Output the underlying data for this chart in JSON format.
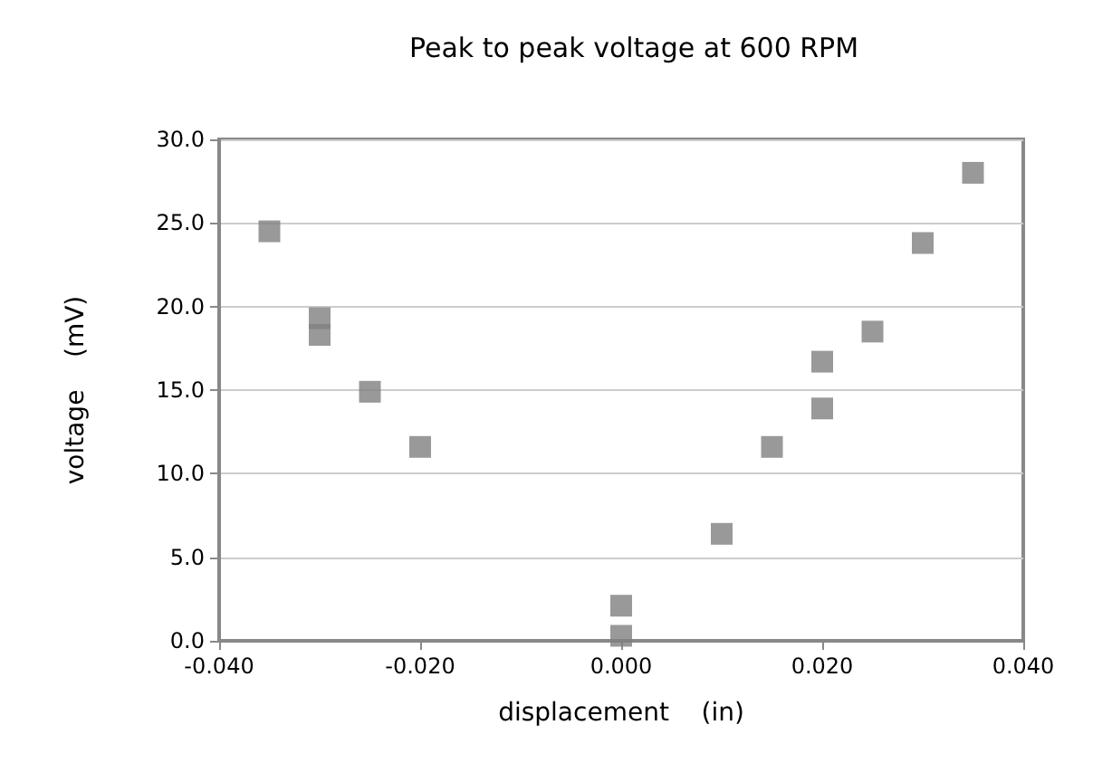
{
  "chart_data": {
    "type": "scatter",
    "title": "Peak to peak voltage at 600 RPM",
    "xlabel": "displacement    (in)",
    "ylabel": "voltage    (mV)",
    "x": [
      -0.035,
      -0.03,
      -0.03,
      -0.025,
      -0.02,
      0.0,
      0.0,
      0.01,
      0.015,
      0.02,
      0.02,
      0.025,
      0.03,
      0.035
    ],
    "series": [
      {
        "color": "#808080",
        "values": [
          24.5,
          19.3,
          18.3,
          14.9,
          11.6,
          2.1,
          0.3,
          6.4,
          11.6,
          16.7,
          13.9,
          18.5,
          23.8,
          28.0
        ]
      }
    ],
    "xlim": [
      -0.04,
      0.04
    ],
    "xticks": [
      {
        "value": -0.04,
        "label": "-0.040"
      },
      {
        "value": -0.02,
        "label": "-0.020"
      },
      {
        "value": 0,
        "label": "0.000"
      },
      {
        "value": 0.02,
        "label": "0.020"
      },
      {
        "value": 0.04,
        "label": "0.040"
      }
    ],
    "ylim": [
      0,
      30
    ],
    "yticks": [
      {
        "value": 0,
        "label": "0.0"
      },
      {
        "value": 5,
        "label": "5.0"
      },
      {
        "value": 10,
        "label": "10.0"
      },
      {
        "value": 15,
        "label": "15.0"
      },
      {
        "value": 20,
        "label": "20.0"
      },
      {
        "value": 25,
        "label": "25.0"
      },
      {
        "value": 30,
        "label": "30.0"
      }
    ],
    "grid": "y",
    "marker": "square"
  }
}
